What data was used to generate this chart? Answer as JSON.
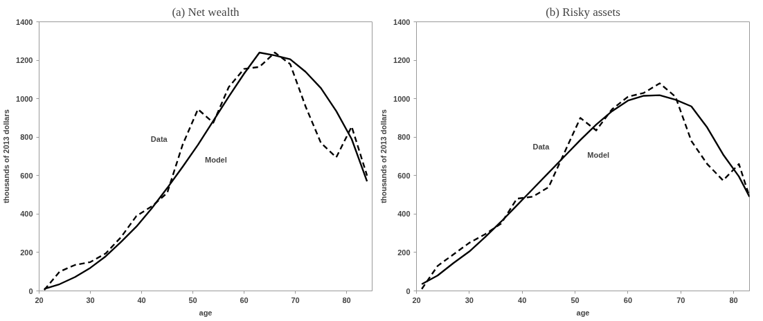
{
  "chart_data": [
    {
      "type": "line",
      "title": "(a) Net wealth",
      "xlabel": "age",
      "ylabel": "thousands of 2013 dollars",
      "x": [
        21,
        24,
        27,
        30,
        33,
        36,
        39,
        42,
        45,
        48,
        51,
        54,
        57,
        60,
        63,
        66,
        69,
        72,
        75,
        78,
        81,
        84
      ],
      "series": [
        {
          "name": "Data",
          "color": "#000000",
          "line_style": "dashed",
          "values": [
            5,
            100,
            135,
            150,
            195,
            280,
            390,
            440,
            510,
            760,
            945,
            875,
            1060,
            1155,
            1165,
            1240,
            1180,
            960,
            770,
            695,
            855,
            600
          ]
        },
        {
          "name": "Model",
          "color": "#000000",
          "line_style": "solid",
          "values": [
            10,
            35,
            72,
            120,
            180,
            255,
            335,
            430,
            535,
            645,
            760,
            885,
            1010,
            1130,
            1240,
            1225,
            1205,
            1140,
            1055,
            935,
            790,
            570
          ]
        }
      ],
      "xlim": [
        20,
        85
      ],
      "xticks": [
        20,
        30,
        40,
        50,
        60,
        70,
        80
      ],
      "ylim": [
        0,
        1400
      ],
      "yticks": [
        0,
        200,
        400,
        600,
        800,
        1000,
        1200,
        1400
      ],
      "grid": false,
      "legend": false,
      "marker": "none"
    },
    {
      "type": "line",
      "title": "(b) Risky assets",
      "xlabel": "age",
      "ylabel": "thousands of 2013 dollars",
      "x": [
        21,
        24,
        27,
        30,
        33,
        36,
        39,
        42,
        45,
        48,
        51,
        54,
        57,
        60,
        63,
        66,
        69,
        72,
        75,
        78,
        81,
        83
      ],
      "series": [
        {
          "name": "Data",
          "color": "#000000",
          "line_style": "dashed",
          "values": [
            10,
            130,
            190,
            250,
            295,
            350,
            480,
            490,
            540,
            720,
            900,
            835,
            945,
            1010,
            1030,
            1080,
            1010,
            780,
            660,
            575,
            660,
            490
          ]
        },
        {
          "name": "Model",
          "color": "#000000",
          "line_style": "solid",
          "values": [
            35,
            80,
            145,
            205,
            280,
            360,
            445,
            530,
            615,
            700,
            785,
            865,
            935,
            990,
            1015,
            1018,
            995,
            960,
            850,
            710,
            595,
            490
          ]
        }
      ],
      "xlim": [
        20,
        83
      ],
      "xticks": [
        20,
        30,
        40,
        50,
        60,
        70,
        80
      ],
      "ylim": [
        0,
        1400
      ],
      "yticks": [
        0,
        200,
        400,
        600,
        800,
        1000,
        1200,
        1400
      ],
      "grid": false,
      "legend": false,
      "marker": "none"
    }
  ]
}
